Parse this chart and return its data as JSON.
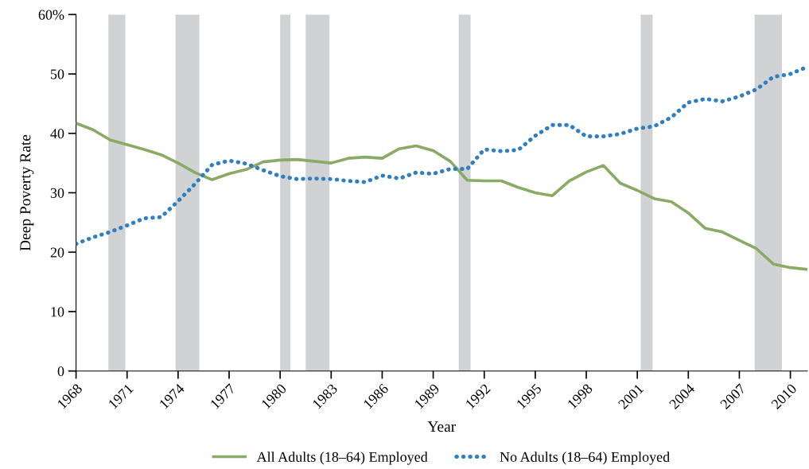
{
  "chart_data": {
    "type": "line",
    "xlabel": "Year",
    "ylabel": "Deep Poverty Rate",
    "x": [
      1968,
      1969,
      1970,
      1971,
      1972,
      1973,
      1974,
      1975,
      1976,
      1977,
      1978,
      1979,
      1980,
      1981,
      1982,
      1983,
      1984,
      1985,
      1986,
      1987,
      1988,
      1989,
      1990,
      1991,
      1992,
      1993,
      1994,
      1995,
      1996,
      1997,
      1998,
      1999,
      2000,
      2001,
      2002,
      2003,
      2004,
      2005,
      2006,
      2007,
      2008,
      2009,
      2010,
      2011
    ],
    "series": [
      {
        "name": "All Adults (18–64) Employed",
        "color": "#8aab65",
        "line_style": "solid",
        "values": [
          41.7,
          40.6,
          38.9,
          38.1,
          37.3,
          36.4,
          35.0,
          33.4,
          32.2,
          33.2,
          33.9,
          35.2,
          35.5,
          35.6,
          35.3,
          35.0,
          35.8,
          36.0,
          35.8,
          37.4,
          37.9,
          37.1,
          35.3,
          32.1,
          32.0,
          32.0,
          30.9,
          30.0,
          29.5,
          32.0,
          33.5,
          34.6,
          31.6,
          30.4,
          29.0,
          28.5,
          26.6,
          24.0,
          23.4,
          22.0,
          20.6,
          18.0,
          17.4,
          17.1
        ]
      },
      {
        "name": "No Adults (18–64) Employed",
        "color": "#2f7fc1",
        "line_style": "dotted",
        "values": [
          21.4,
          22.5,
          23.4,
          24.5,
          25.7,
          25.9,
          28.6,
          31.5,
          34.7,
          35.4,
          34.9,
          33.8,
          32.8,
          32.3,
          32.4,
          32.3,
          32.0,
          31.8,
          32.9,
          32.4,
          33.4,
          33.2,
          34.0,
          34.0,
          37.3,
          37.0,
          37.2,
          39.6,
          41.4,
          41.4,
          39.5,
          39.5,
          39.9,
          40.8,
          41.2,
          42.7,
          45.2,
          45.8,
          45.4,
          46.2,
          47.4,
          49.5,
          50.0,
          51.2
        ]
      }
    ],
    "xlim": [
      1968,
      2011
    ],
    "xticks": [
      1968,
      1971,
      1974,
      1977,
      1980,
      1983,
      1986,
      1989,
      1992,
      1995,
      1998,
      2001,
      2004,
      2007,
      2010
    ],
    "ylim": [
      0,
      60
    ],
    "yticks": [
      0,
      10,
      20,
      30,
      40,
      50,
      {
        "value": 60,
        "label": "60%"
      }
    ],
    "bands": [
      {
        "axis": "x",
        "from": 1969.9,
        "to": 1970.9,
        "color": "#d1d2d4"
      },
      {
        "axis": "x",
        "from": 1973.85,
        "to": 1975.25,
        "color": "#d1d2d4"
      },
      {
        "axis": "x",
        "from": 1980.0,
        "to": 1980.6,
        "color": "#d1d2d4"
      },
      {
        "axis": "x",
        "from": 1981.5,
        "to": 1982.9,
        "color": "#d1d2d4"
      },
      {
        "axis": "x",
        "from": 1990.5,
        "to": 1991.2,
        "color": "#d1d2d4"
      },
      {
        "axis": "x",
        "from": 2001.2,
        "to": 2001.9,
        "color": "#d1d2d4"
      },
      {
        "axis": "x",
        "from": 2007.9,
        "to": 2009.5,
        "color": "#d1d2d4"
      }
    ],
    "grid": false,
    "legend": "bottom",
    "marker": "none"
  }
}
